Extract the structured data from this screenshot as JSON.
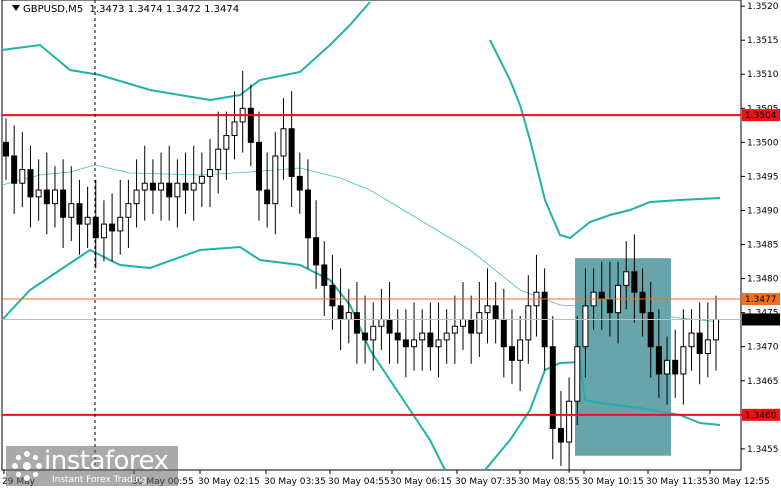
{
  "symbol_header": {
    "symbol": "GBPUSD,M5",
    "open": "1.3473",
    "high": "1.3474",
    "low": "1.3472",
    "close": "1.3474"
  },
  "y_axis": {
    "ticks": [
      "1.3520",
      "1.3515",
      "1.3510",
      "1.3505",
      "1.3500",
      "1.3495",
      "1.3490",
      "1.3485",
      "1.3480",
      "1.3475",
      "1.3470",
      "1.3465",
      "1.3460",
      "1.3455"
    ],
    "min": 1.34519,
    "max": 1.35209
  },
  "x_axis": {
    "ticks": [
      "29 May",
      "30 May 00:55",
      "30 May 02:15",
      "30 May 03:35",
      "30 May 04:55",
      "30 May 06:15",
      "30 May 07:35",
      "30 May 08:55",
      "30 May 10:15",
      "30 May 11:35",
      "30 May 12:55"
    ]
  },
  "levels": [
    {
      "label": "1.3504",
      "value": 1.3504,
      "color": "#ee1111",
      "kind": "resistance"
    },
    {
      "label": "1.3477",
      "value": 1.3477,
      "color": "#f07020",
      "kind": "mid"
    },
    {
      "label": "1.3460",
      "value": 1.346,
      "color": "#ee1111",
      "kind": "support"
    }
  ],
  "price_label": {
    "label": "1.3474",
    "value": 1.3474
  },
  "colors": {
    "band": "#20b2aa",
    "mid_band": "#40c0b8",
    "candle": "#000000",
    "zone": "#3c8c94",
    "background": "#ffffff"
  },
  "watermark": {
    "brand": "instaforex",
    "tagline": "Instant Forex Trading"
  },
  "chart_data": {
    "type": "candlestick",
    "indicators": [
      "Bollinger Bands"
    ],
    "highlight_zone": {
      "x_from": "30 May 08:55",
      "x_to": "30 May 11:35",
      "y_from": 1.3454,
      "y_to": 1.3483
    },
    "closes": [
      1.3498,
      1.3494,
      1.3496,
      1.3492,
      1.3493,
      1.3491,
      1.3493,
      1.3489,
      1.3491,
      1.3488,
      1.3489,
      1.3486,
      1.3488,
      1.3487,
      1.3489,
      1.3491,
      1.3493,
      1.3494,
      1.3493,
      1.3494,
      1.3492,
      1.3494,
      1.3493,
      1.3494,
      1.3495,
      1.3496,
      1.3499,
      1.3501,
      1.3503,
      1.3505,
      1.35,
      1.3493,
      1.3491,
      1.3498,
      1.3502,
      1.3495,
      1.3493,
      1.3486,
      1.3482,
      1.3479,
      1.3476,
      1.3474,
      1.3475,
      1.3472,
      1.3471,
      1.3473,
      1.3474,
      1.3472,
      1.3471,
      1.347,
      1.3471,
      1.3472,
      1.347,
      1.3471,
      1.3472,
      1.3473,
      1.3474,
      1.3472,
      1.3475,
      1.3476,
      1.3474,
      1.347,
      1.3468,
      1.3471,
      1.3476,
      1.3478,
      1.347,
      1.3458,
      1.3456,
      1.3462,
      1.347,
      1.3476,
      1.3478,
      1.3477,
      1.3475,
      1.3479,
      1.3481,
      1.3478,
      1.3475,
      1.347,
      1.3466,
      1.3468,
      1.3466,
      1.347,
      1.3472,
      1.3469,
      1.3471,
      1.3474
    ]
  }
}
